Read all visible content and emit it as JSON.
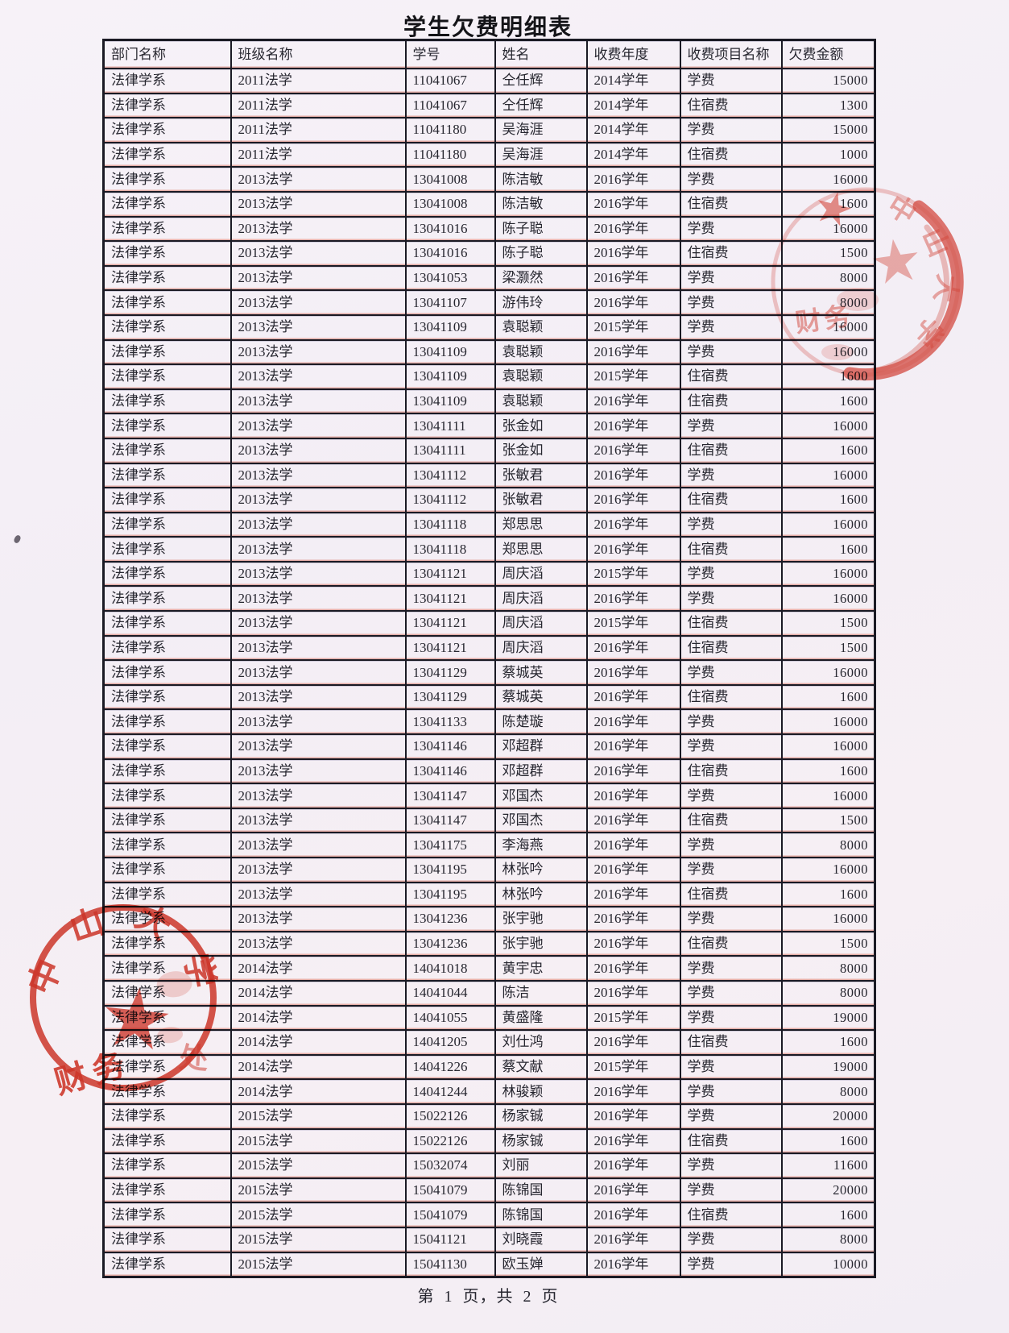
{
  "page": {
    "title": "学生欠费明细表",
    "footer": "第 1 页，共 2 页"
  },
  "table": {
    "headers": [
      "部门名称",
      "班级名称",
      "学号",
      "姓名",
      "收费年度",
      "收费项目名称",
      "欠费金额"
    ],
    "rows": [
      [
        "法律学系",
        "2011法学",
        "11041067",
        "仝任辉",
        "2014学年",
        "学费",
        "15000"
      ],
      [
        "法律学系",
        "2011法学",
        "11041067",
        "仝任辉",
        "2014学年",
        "住宿费",
        "1300"
      ],
      [
        "法律学系",
        "2011法学",
        "11041180",
        "吴海涯",
        "2014学年",
        "学费",
        "15000"
      ],
      [
        "法律学系",
        "2011法学",
        "11041180",
        "吴海涯",
        "2014学年",
        "住宿费",
        "1000"
      ],
      [
        "法律学系",
        "2013法学",
        "13041008",
        "陈洁敏",
        "2016学年",
        "学费",
        "16000"
      ],
      [
        "法律学系",
        "2013法学",
        "13041008",
        "陈洁敏",
        "2016学年",
        "住宿费",
        "1600"
      ],
      [
        "法律学系",
        "2013法学",
        "13041016",
        "陈子聪",
        "2016学年",
        "学费",
        "16000"
      ],
      [
        "法律学系",
        "2013法学",
        "13041016",
        "陈子聪",
        "2016学年",
        "住宿费",
        "1500"
      ],
      [
        "法律学系",
        "2013法学",
        "13041053",
        "梁灏然",
        "2016学年",
        "学费",
        "8000"
      ],
      [
        "法律学系",
        "2013法学",
        "13041107",
        "游伟玲",
        "2016学年",
        "学费",
        "8000"
      ],
      [
        "法律学系",
        "2013法学",
        "13041109",
        "袁聪颖",
        "2015学年",
        "学费",
        "16000"
      ],
      [
        "法律学系",
        "2013法学",
        "13041109",
        "袁聪颖",
        "2016学年",
        "学费",
        "16000"
      ],
      [
        "法律学系",
        "2013法学",
        "13041109",
        "袁聪颖",
        "2015学年",
        "住宿费",
        "1600"
      ],
      [
        "法律学系",
        "2013法学",
        "13041109",
        "袁聪颖",
        "2016学年",
        "住宿费",
        "1600"
      ],
      [
        "法律学系",
        "2013法学",
        "13041111",
        "张金如",
        "2016学年",
        "学费",
        "16000"
      ],
      [
        "法律学系",
        "2013法学",
        "13041111",
        "张金如",
        "2016学年",
        "住宿费",
        "1600"
      ],
      [
        "法律学系",
        "2013法学",
        "13041112",
        "张敏君",
        "2016学年",
        "学费",
        "16000"
      ],
      [
        "法律学系",
        "2013法学",
        "13041112",
        "张敏君",
        "2016学年",
        "住宿费",
        "1600"
      ],
      [
        "法律学系",
        "2013法学",
        "13041118",
        "郑思思",
        "2016学年",
        "学费",
        "16000"
      ],
      [
        "法律学系",
        "2013法学",
        "13041118",
        "郑思思",
        "2016学年",
        "住宿费",
        "1600"
      ],
      [
        "法律学系",
        "2013法学",
        "13041121",
        "周庆滔",
        "2015学年",
        "学费",
        "16000"
      ],
      [
        "法律学系",
        "2013法学",
        "13041121",
        "周庆滔",
        "2016学年",
        "学费",
        "16000"
      ],
      [
        "法律学系",
        "2013法学",
        "13041121",
        "周庆滔",
        "2015学年",
        "住宿费",
        "1500"
      ],
      [
        "法律学系",
        "2013法学",
        "13041121",
        "周庆滔",
        "2016学年",
        "住宿费",
        "1500"
      ],
      [
        "法律学系",
        "2013法学",
        "13041129",
        "蔡城英",
        "2016学年",
        "学费",
        "16000"
      ],
      [
        "法律学系",
        "2013法学",
        "13041129",
        "蔡城英",
        "2016学年",
        "住宿费",
        "1600"
      ],
      [
        "法律学系",
        "2013法学",
        "13041133",
        "陈楚璇",
        "2016学年",
        "学费",
        "16000"
      ],
      [
        "法律学系",
        "2013法学",
        "13041146",
        "邓超群",
        "2016学年",
        "学费",
        "16000"
      ],
      [
        "法律学系",
        "2013法学",
        "13041146",
        "邓超群",
        "2016学年",
        "住宿费",
        "1600"
      ],
      [
        "法律学系",
        "2013法学",
        "13041147",
        "邓国杰",
        "2016学年",
        "学费",
        "16000"
      ],
      [
        "法律学系",
        "2013法学",
        "13041147",
        "邓国杰",
        "2016学年",
        "住宿费",
        "1500"
      ],
      [
        "法律学系",
        "2013法学",
        "13041175",
        "李海燕",
        "2016学年",
        "学费",
        "8000"
      ],
      [
        "法律学系",
        "2013法学",
        "13041195",
        "林张吟",
        "2016学年",
        "学费",
        "16000"
      ],
      [
        "法律学系",
        "2013法学",
        "13041195",
        "林张吟",
        "2016学年",
        "住宿费",
        "1600"
      ],
      [
        "法律学系",
        "2013法学",
        "13041236",
        "张宇驰",
        "2016学年",
        "学费",
        "16000"
      ],
      [
        "法律学系",
        "2013法学",
        "13041236",
        "张宇驰",
        "2016学年",
        "住宿费",
        "1500"
      ],
      [
        "法律学系",
        "2014法学",
        "14041018",
        "黄宇忠",
        "2016学年",
        "学费",
        "8000"
      ],
      [
        "法律学系",
        "2014法学",
        "14041044",
        "陈洁",
        "2016学年",
        "学费",
        "8000"
      ],
      [
        "法律学系",
        "2014法学",
        "14041055",
        "黄盛隆",
        "2015学年",
        "学费",
        "19000"
      ],
      [
        "法律学系",
        "2014法学",
        "14041205",
        "刘仕鸿",
        "2016学年",
        "住宿费",
        "1600"
      ],
      [
        "法律学系",
        "2014法学",
        "14041226",
        "蔡文献",
        "2015学年",
        "学费",
        "19000"
      ],
      [
        "法律学系",
        "2014法学",
        "14041244",
        "林骏颖",
        "2016学年",
        "学费",
        "8000"
      ],
      [
        "法律学系",
        "2015法学",
        "15022126",
        "杨家铖",
        "2016学年",
        "学费",
        "20000"
      ],
      [
        "法律学系",
        "2015法学",
        "15022126",
        "杨家铖",
        "2016学年",
        "住宿费",
        "1600"
      ],
      [
        "法律学系",
        "2015法学",
        "15032074",
        "刘丽",
        "2016学年",
        "学费",
        "11600"
      ],
      [
        "法律学系",
        "2015法学",
        "15041079",
        "陈锦国",
        "2016学年",
        "学费",
        "20000"
      ],
      [
        "法律学系",
        "2015法学",
        "15041079",
        "陈锦国",
        "2016学年",
        "住宿费",
        "1600"
      ],
      [
        "法律学系",
        "2015法学",
        "15041121",
        "刘晓霞",
        "2016学年",
        "学费",
        "8000"
      ],
      [
        "法律学系",
        "2015法学",
        "15041130",
        "欧玉婵",
        "2016学年",
        "学费",
        "10000"
      ]
    ]
  },
  "stamps": {
    "bottom_left": {
      "arc_text": "中山大学",
      "bottom_text": "财务",
      "side_text": "处"
    },
    "top_right": {
      "arc_text": "中山大学",
      "smudge_text": "财务"
    }
  },
  "colors": {
    "stamp_red": "#d5392b",
    "grid_line": "#1a1a24",
    "ink": "#26262f",
    "paper": "#f4eff6",
    "fringe_red": "#c73e26"
  }
}
